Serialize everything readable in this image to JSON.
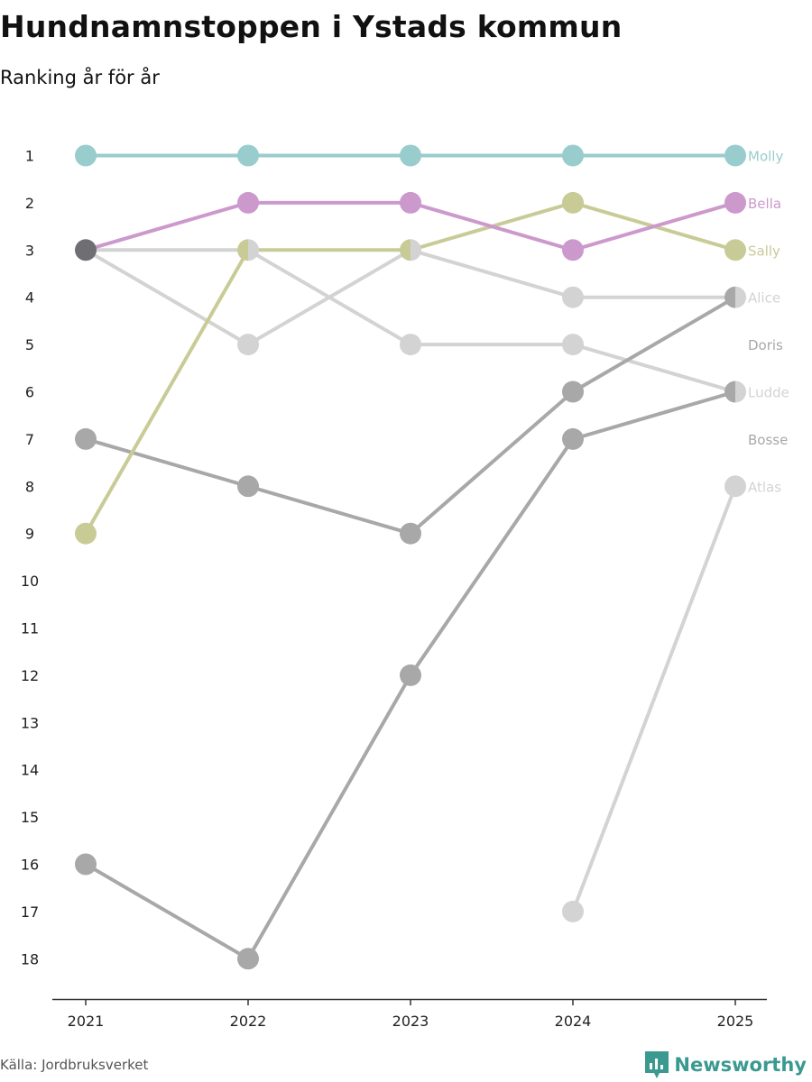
{
  "title": "Hundnamnstoppen i Ystads kommun",
  "subtitle": "Ranking år för år",
  "source": "Källa: Jordbruksverket",
  "brand": {
    "name": "Newsworthy",
    "icon": "bar-chart-icon",
    "color": "#3a9a90"
  },
  "chart_data": {
    "type": "line",
    "x": [
      "2021",
      "2022",
      "2023",
      "2024",
      "2025"
    ],
    "y_ticks": [
      1,
      2,
      3,
      4,
      5,
      6,
      7,
      8,
      9,
      10,
      11,
      12,
      13,
      14,
      15,
      16,
      17,
      18
    ],
    "y_inverted": true,
    "ylim": [
      1,
      18
    ],
    "grid": false,
    "legend": "end-labels-right",
    "series": [
      {
        "name": "Atlas",
        "color": "#d3d3d3",
        "values": [
          null,
          null,
          null,
          17,
          8
        ]
      },
      {
        "name": "Ludde",
        "color": "#d3d3d3",
        "values": [
          3,
          3,
          5,
          5,
          6
        ]
      },
      {
        "name": "Alice",
        "color": "#d3d3d3",
        "values": [
          3,
          5,
          3,
          4,
          4
        ]
      },
      {
        "name": "Bosse",
        "color": "#a8a8a8",
        "values": [
          16,
          18,
          12,
          7,
          6
        ]
      },
      {
        "name": "Doris",
        "color": "#a8a8a8",
        "values": [
          7,
          8,
          9,
          6,
          4
        ]
      },
      {
        "name": "Sally",
        "color": "#c9cb97",
        "values": [
          9,
          3,
          3,
          2,
          3
        ]
      },
      {
        "name": "Bella",
        "color": "#cc99cc",
        "values": [
          3,
          2,
          2,
          3,
          2
        ]
      },
      {
        "name": "Molly",
        "color": "#99cccc",
        "values": [
          1,
          1,
          1,
          1,
          1
        ]
      }
    ],
    "end_labels": [
      {
        "name": "Molly",
        "rank": 1,
        "color": "#99cccc"
      },
      {
        "name": "Bella",
        "rank": 2,
        "color": "#cc99cc"
      },
      {
        "name": "Sally",
        "rank": 3,
        "color": "#c9cb97"
      },
      {
        "name": "Alice",
        "rank": 4,
        "color": "#d3d3d3"
      },
      {
        "name": "Doris",
        "rank": 5,
        "color": "#a8a8a8"
      },
      {
        "name": "Ludde",
        "rank": 6,
        "color": "#d3d3d3"
      },
      {
        "name": "Bosse",
        "rank": 7,
        "color": "#a8a8a8"
      },
      {
        "name": "Atlas",
        "rank": 8,
        "color": "#d3d3d3"
      }
    ],
    "overlap_point_color": "#6e6e73"
  }
}
